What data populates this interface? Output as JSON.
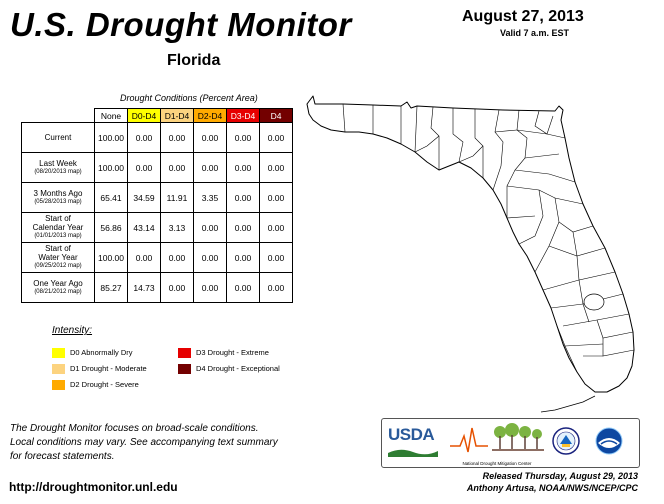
{
  "header": {
    "title": "U.S. Drought Monitor",
    "state": "Florida",
    "date": "August 27, 2013",
    "valid": "Valid 7 a.m. EST"
  },
  "table": {
    "caption": "Drought Conditions (Percent Area)",
    "columns": [
      "None",
      "D0-D4",
      "D1-D4",
      "D2-D4",
      "D3-D4",
      "D4"
    ],
    "column_colors": [
      "#ffffff",
      "#ffff00",
      "#fcd37f",
      "#ffaa00",
      "#e60000",
      "#730000"
    ],
    "column_text_colors": [
      "#000000",
      "#000000",
      "#000000",
      "#000000",
      "#ffffff",
      "#ffffff"
    ],
    "rows": [
      {
        "label1": "Current",
        "label2": "",
        "label3": "",
        "values": [
          "100.00",
          "0.00",
          "0.00",
          "0.00",
          "0.00",
          "0.00"
        ]
      },
      {
        "label1": "Last Week",
        "label2": "",
        "label3": "(08/20/2013 map)",
        "values": [
          "100.00",
          "0.00",
          "0.00",
          "0.00",
          "0.00",
          "0.00"
        ]
      },
      {
        "label1": "3 Months Ago",
        "label2": "",
        "label3": "(05/28/2013 map)",
        "values": [
          "65.41",
          "34.59",
          "11.91",
          "3.35",
          "0.00",
          "0.00"
        ]
      },
      {
        "label1": "Start of",
        "label2": "Calendar Year",
        "label3": "(01/01/2013 map)",
        "values": [
          "56.86",
          "43.14",
          "3.13",
          "0.00",
          "0.00",
          "0.00"
        ]
      },
      {
        "label1": "Start of",
        "label2": "Water Year",
        "label3": "(09/25/2012 map)",
        "values": [
          "100.00",
          "0.00",
          "0.00",
          "0.00",
          "0.00",
          "0.00"
        ]
      },
      {
        "label1": "One Year Ago",
        "label2": "",
        "label3": "(08/21/2012 map)",
        "values": [
          "85.27",
          "14.73",
          "0.00",
          "0.00",
          "0.00",
          "0.00"
        ]
      }
    ]
  },
  "legend": {
    "title": "Intensity:",
    "items": [
      {
        "label": "D0 Abnormally Dry",
        "color": "#ffff00"
      },
      {
        "label": "D1 Drought - Moderate",
        "color": "#fcd37f"
      },
      {
        "label": "D2 Drought - Severe",
        "color": "#ffaa00"
      },
      {
        "label": "D3 Drought - Extreme",
        "color": "#e60000"
      },
      {
        "label": "D4 Drought - Exceptional",
        "color": "#730000"
      }
    ]
  },
  "footer": {
    "note_line1": "The Drought Monitor focuses on broad-scale conditions.",
    "note_line2": "Local conditions may vary. See accompanying text summary",
    "note_line3": "for forecast statements.",
    "url": "http://droughtmonitor.unl.edu",
    "released": "Released Thursday, August 29, 2013",
    "author": "Anthony Artusa, NOAA/NWS/NCEP/CPC"
  },
  "logos": {
    "usda": "USDA",
    "ndmc": "National Drought Mitigation Center",
    "doc": "DEPARTMENT OF COMMERCE",
    "noaa": "NOAA"
  }
}
